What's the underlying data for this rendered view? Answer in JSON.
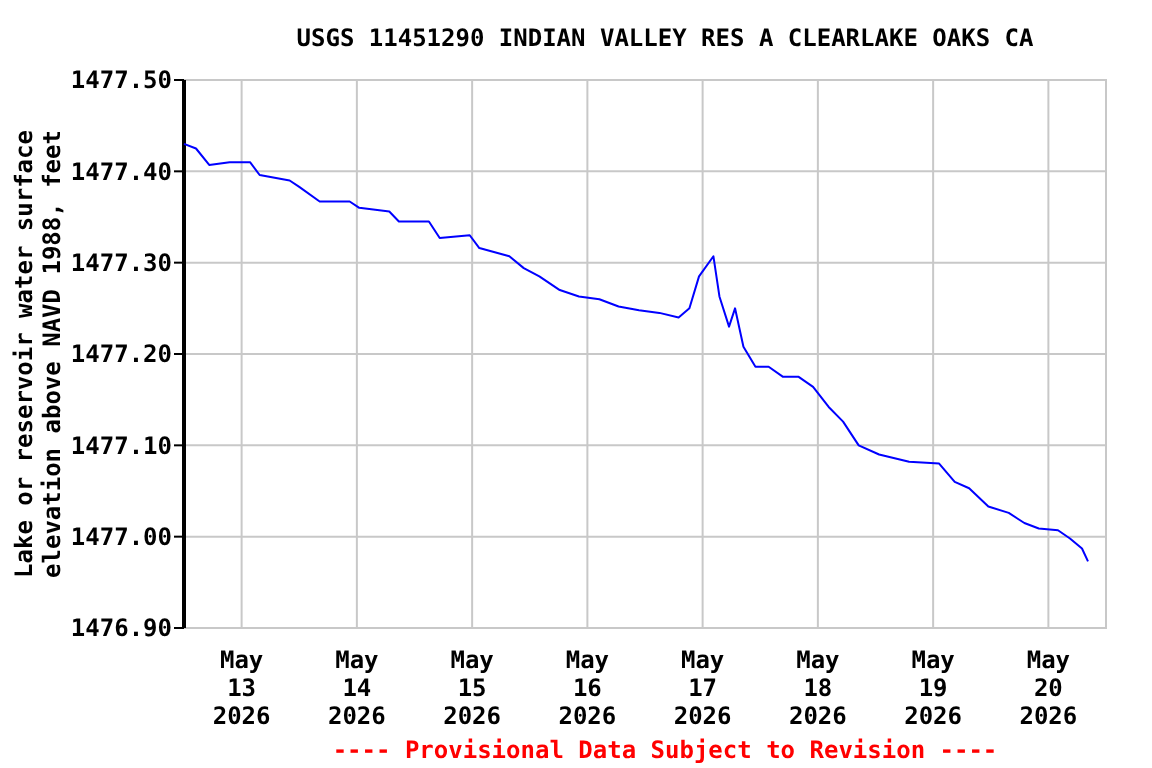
{
  "chart_data": {
    "type": "line",
    "title": "USGS 11451290 INDIAN VALLEY RES A CLEARLAKE OAKS CA",
    "ylabel": "Lake or reservoir water surface\nelevation above NAVD 1988, feet",
    "annotations": [
      "---- Provisional Data Subject to Revision ----"
    ],
    "x": [
      "2026-05-12T12:00",
      "2026-05-12T14:30",
      "2026-05-12T17:15",
      "2026-05-12T21:30",
      "2026-05-13T01:45",
      "2026-05-13T03:45",
      "2026-05-13T10:00",
      "2026-05-13T12:00",
      "2026-05-13T16:15",
      "2026-05-13T22:30",
      "2026-05-14T00:30",
      "2026-05-14T06:45",
      "2026-05-14T08:45",
      "2026-05-14T15:00",
      "2026-05-14T17:15",
      "2026-05-14T23:30",
      "2026-05-15T01:30",
      "2026-05-15T07:45",
      "2026-05-15T10:45",
      "2026-05-15T14:00",
      "2026-05-15T18:15",
      "2026-05-15T22:15",
      "2026-05-16T02:30",
      "2026-05-16T06:30",
      "2026-05-16T10:45",
      "2026-05-16T15:00",
      "2026-05-16T19:00",
      "2026-05-16T21:15",
      "2026-05-16T23:15",
      "2026-05-17T02:15",
      "2026-05-17T03:30",
      "2026-05-17T05:30",
      "2026-05-17T06:45",
      "2026-05-17T08:30",
      "2026-05-17T11:00",
      "2026-05-17T13:45",
      "2026-05-17T16:45",
      "2026-05-17T20:00",
      "2026-05-17T23:00",
      "2026-05-18T02:15",
      "2026-05-18T05:15",
      "2026-05-18T08:30",
      "2026-05-18T12:45",
      "2026-05-18T19:00",
      "2026-05-19T01:15",
      "2026-05-19T04:30",
      "2026-05-19T07:30",
      "2026-05-19T11:30",
      "2026-05-19T15:45",
      "2026-05-19T19:00",
      "2026-05-19T22:00",
      "2026-05-20T02:00",
      "2026-05-20T04:30",
      "2026-05-20T07:00",
      "2026-05-20T08:15"
    ],
    "series": [
      {
        "color": "#0000ff",
        "values": [
          1477.43,
          1477.425,
          1477.407,
          1477.41,
          1477.41,
          1477.396,
          1477.39,
          1477.383,
          1477.367,
          1477.367,
          1477.36,
          1477.356,
          1477.345,
          1477.345,
          1477.327,
          1477.33,
          1477.316,
          1477.307,
          1477.294,
          1477.285,
          1477.27,
          1477.263,
          1477.26,
          1477.252,
          1477.248,
          1477.245,
          1477.24,
          1477.25,
          1477.285,
          1477.307,
          1477.263,
          1477.23,
          1477.25,
          1477.208,
          1477.186,
          1477.186,
          1477.175,
          1477.175,
          1477.164,
          1477.142,
          1477.126,
          1477.1,
          1477.09,
          1477.082,
          1477.08,
          1477.06,
          1477.053,
          1477.033,
          1477.026,
          1477.015,
          1477.009,
          1477.007,
          1476.998,
          1476.987,
          1476.973
        ]
      }
    ],
    "xlim": [
      "2026-05-12T12:00",
      "2026-05-20T12:00"
    ],
    "xticks": [
      {
        "value": "2026-05-13",
        "label": "May\n13\n2026"
      },
      {
        "value": "2026-05-14",
        "label": "May\n14\n2026"
      },
      {
        "value": "2026-05-15",
        "label": "May\n15\n2026"
      },
      {
        "value": "2026-05-16",
        "label": "May\n16\n2026"
      },
      {
        "value": "2026-05-17",
        "label": "May\n17\n2026"
      },
      {
        "value": "2026-05-18",
        "label": "May\n18\n2026"
      },
      {
        "value": "2026-05-19",
        "label": "May\n19\n2026"
      },
      {
        "value": "2026-05-20",
        "label": "May\n20\n2026"
      }
    ],
    "ylim": [
      1476.9,
      1477.5
    ],
    "yticks": [
      {
        "value": 1476.9,
        "label": "1476.90"
      },
      {
        "value": 1477.0,
        "label": "1477.00"
      },
      {
        "value": 1477.1,
        "label": "1477.10"
      },
      {
        "value": 1477.2,
        "label": "1477.20"
      },
      {
        "value": 1477.3,
        "label": "1477.30"
      },
      {
        "value": 1477.4,
        "label": "1477.40"
      },
      {
        "value": 1477.5,
        "label": "1477.50"
      }
    ],
    "grid": true
  }
}
